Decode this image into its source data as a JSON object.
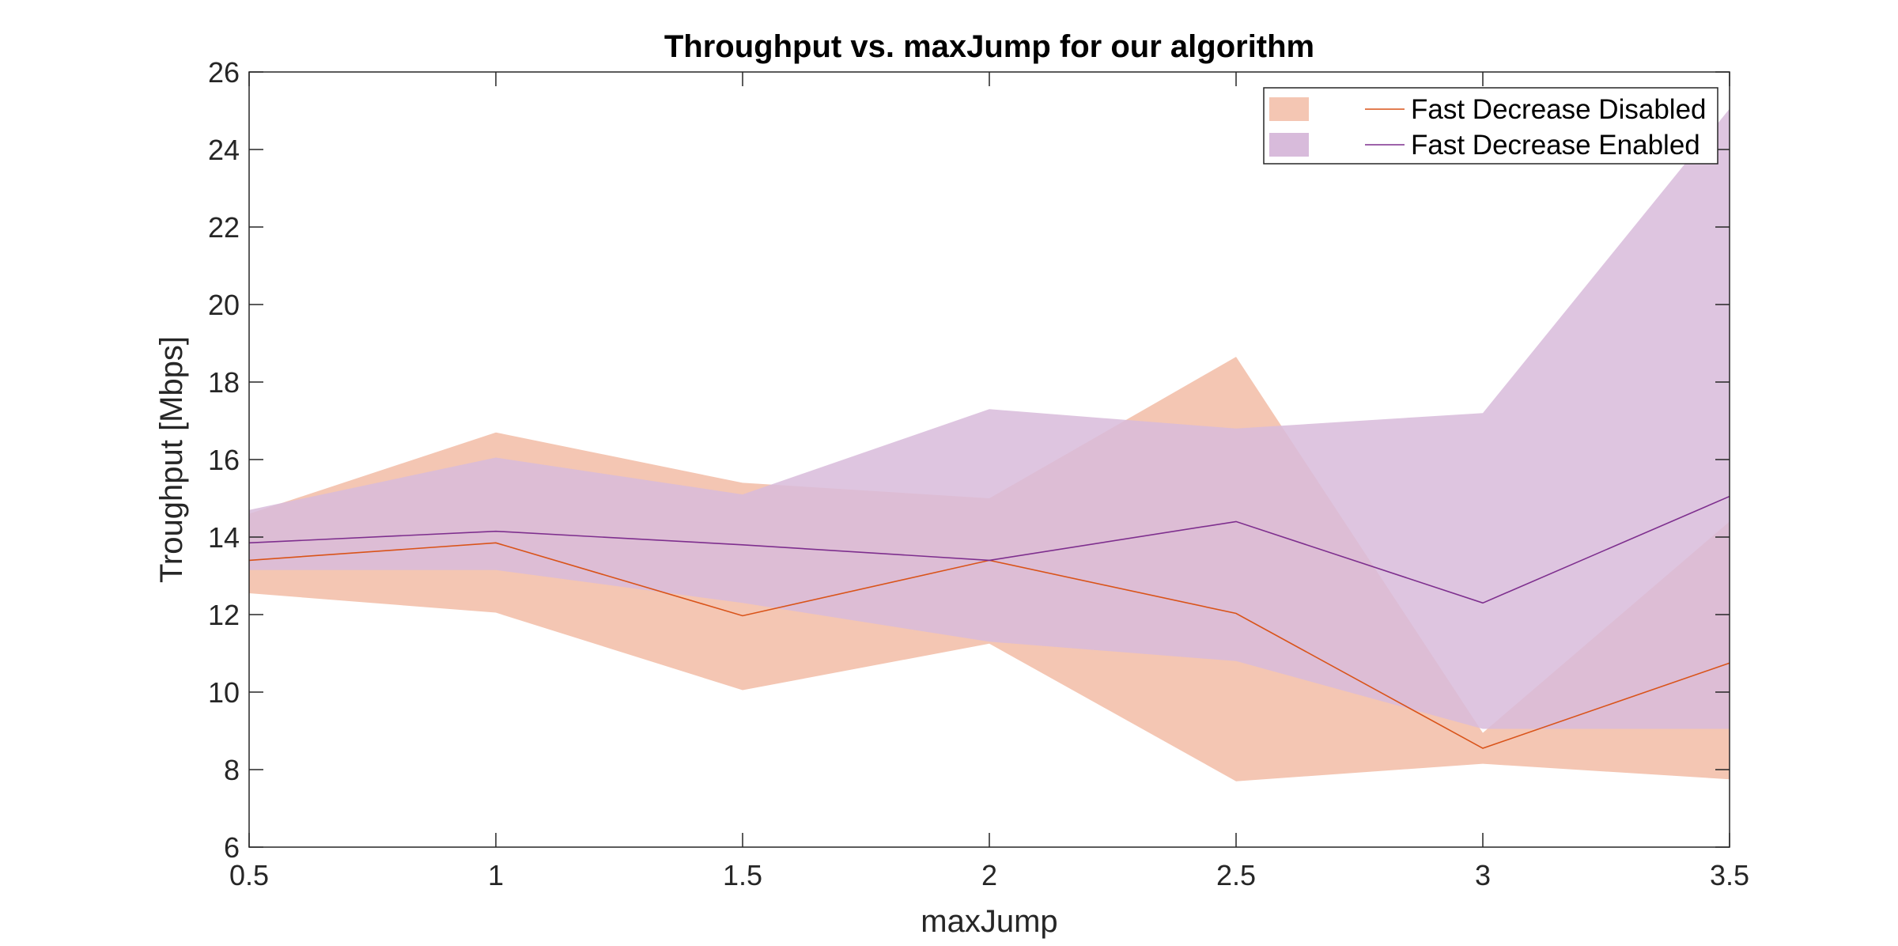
{
  "chart_data": {
    "type": "area",
    "title": "Throughput vs. maxJump for our algorithm",
    "xlabel": "maxJump",
    "ylabel": "Troughput [Mbps]",
    "xlim": [
      0.5,
      3.5
    ],
    "ylim": [
      6,
      26
    ],
    "xticks": [
      0.5,
      1,
      1.5,
      2,
      2.5,
      3,
      3.5
    ],
    "xtick_labels": [
      "0.5",
      "1",
      "1.5",
      "2",
      "2.5",
      "3",
      "3.5"
    ],
    "yticks": [
      6,
      8,
      10,
      12,
      14,
      16,
      18,
      20,
      22,
      24,
      26
    ],
    "ytick_labels": [
      "6",
      "8",
      "10",
      "12",
      "14",
      "16",
      "18",
      "20",
      "22",
      "24",
      "26"
    ],
    "grid": false,
    "legend_position": "top-right",
    "x": [
      0.5,
      1,
      1.5,
      2,
      2.5,
      3,
      3.5
    ],
    "series": [
      {
        "name": "Fast Decrease Disabled",
        "line_color": "#D95319",
        "fill_color": "#F4C6B3",
        "values": [
          13.4,
          13.85,
          11.97,
          13.4,
          12.03,
          8.55,
          10.75
        ],
        "upper": [
          14.6,
          16.7,
          15.4,
          15.0,
          18.65,
          8.95,
          14.4
        ],
        "lower": [
          12.55,
          12.05,
          10.05,
          11.25,
          7.7,
          8.15,
          7.75
        ]
      },
      {
        "name": "Fast Decrease Enabled",
        "line_color": "#7E2F8E",
        "fill_color": "#D8BBDB",
        "values": [
          13.85,
          14.15,
          13.8,
          13.4,
          14.4,
          12.3,
          15.05
        ],
        "upper": [
          14.7,
          16.05,
          15.1,
          17.3,
          16.8,
          17.2,
          25.05
        ],
        "lower": [
          13.15,
          13.15,
          12.3,
          11.3,
          10.8,
          9.05,
          9.05
        ]
      }
    ]
  }
}
